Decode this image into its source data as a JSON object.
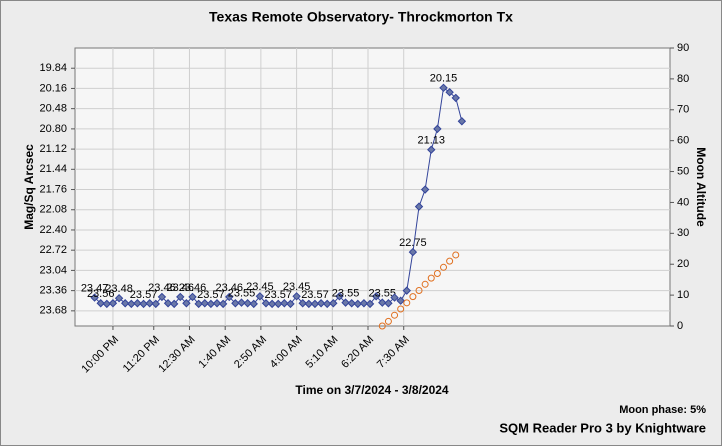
{
  "chart_data": {
    "type": "line",
    "title": "Texas Remote Observatory- Throckmorton Tx",
    "x_label": "Time on 3/7/2024 - 3/8/2024",
    "y_label": "Mag/Sq Arcsec",
    "y2_label": "Moon Altitude",
    "annotations": [
      "Moon phase: 5%",
      "SQM Reader Pro 3 by Knightware"
    ],
    "xlim": [
      20.76,
      40.2
    ],
    "xticks": [
      {
        "value": 22.0,
        "label": "10:00 PM"
      },
      {
        "value": 23.333,
        "label": "11:20 PM"
      },
      {
        "value": 24.5,
        "label": "12:30 AM"
      },
      {
        "value": 25.667,
        "label": "1:40 AM"
      },
      {
        "value": 26.833,
        "label": "2:50 AM"
      },
      {
        "value": 28.0,
        "label": "4:00 AM"
      },
      {
        "value": 29.167,
        "label": "5:10 AM"
      },
      {
        "value": 30.333,
        "label": "6:20 AM"
      },
      {
        "value": 31.5,
        "label": "7:30 AM"
      }
    ],
    "ylim": [
      19.52,
      23.92
    ],
    "y_inverted": true,
    "yticks": [
      19.84,
      20.16,
      20.48,
      {
        "value": 20.8,
        "label": "20.80"
      },
      21.12,
      21.44,
      21.76,
      22.08,
      {
        "value": 22.4,
        "label": "22.40"
      },
      22.72,
      23.04,
      23.36,
      23.68
    ],
    "y2lim": [
      0,
      90
    ],
    "y2ticks": [
      0,
      10,
      20,
      30,
      40,
      50,
      60,
      70,
      80,
      90
    ],
    "grid": true,
    "series": [
      {
        "name": "SQM",
        "color": "#33449a",
        "marker": "diamond",
        "x": [
          21.4,
          21.6,
          21.8,
          22.0,
          22.2,
          22.4,
          22.6,
          22.8,
          23.0,
          23.2,
          23.4,
          23.6,
          23.8,
          24.0,
          24.2,
          24.4,
          24.6,
          24.8,
          25.0,
          25.2,
          25.4,
          25.6,
          25.8,
          26.0,
          26.2,
          26.4,
          26.6,
          26.8,
          27.0,
          27.2,
          27.4,
          27.6,
          27.8,
          28.0,
          28.2,
          28.4,
          28.6,
          28.8,
          29.0,
          29.2,
          29.4,
          29.6,
          29.8,
          30.0,
          30.2,
          30.4,
          30.6,
          30.8,
          31.0,
          31.2,
          31.4,
          31.6,
          31.8,
          32.0,
          32.2,
          32.4,
          32.6,
          32.8,
          33.0,
          33.2,
          33.4
        ],
        "values": [
          23.47,
          23.56,
          23.57,
          23.56,
          23.48,
          23.56,
          23.57,
          23.56,
          23.57,
          23.56,
          23.57,
          23.46,
          23.56,
          23.57,
          23.46,
          23.56,
          23.46,
          23.57,
          23.56,
          23.57,
          23.56,
          23.57,
          23.46,
          23.56,
          23.55,
          23.56,
          23.57,
          23.45,
          23.56,
          23.57,
          23.57,
          23.56,
          23.57,
          23.45,
          23.56,
          23.57,
          23.57,
          23.56,
          23.57,
          23.56,
          23.45,
          23.55,
          23.56,
          23.57,
          23.56,
          23.57,
          23.45,
          23.55,
          23.56,
          23.47,
          23.52,
          23.36,
          22.75,
          22.03,
          21.76,
          21.13,
          20.8,
          20.15,
          20.22,
          20.31,
          20.68
        ],
        "value_labels": [
          "23.47",
          "23.56",
          null,
          null,
          "23.48",
          null,
          null,
          null,
          "23.57",
          null,
          null,
          "23.46",
          null,
          null,
          "23.46",
          null,
          "23.46",
          null,
          null,
          "23.57",
          null,
          null,
          "23.46",
          null,
          "23.55",
          null,
          null,
          "23.45",
          null,
          null,
          "23.57",
          null,
          null,
          "23.45",
          null,
          null,
          "23.57",
          null,
          null,
          null,
          null,
          "23.55",
          null,
          null,
          null,
          null,
          null,
          "23.55",
          null,
          null,
          null,
          null,
          "22.75",
          null,
          null,
          "21.13",
          null,
          "20.15",
          null,
          null,
          null
        ]
      },
      {
        "name": "Moon",
        "color": "#e07020",
        "marker": "circle",
        "axis": "y2",
        "x": [
          30.8,
          31.0,
          31.2,
          31.4,
          31.6,
          31.8,
          32.0,
          32.2,
          32.4,
          32.6,
          32.8,
          33.0,
          33.2
        ],
        "values": [
          0,
          1.5,
          3.5,
          5.5,
          7.5,
          9.5,
          11.5,
          13.5,
          15.5,
          17,
          19,
          21,
          23
        ]
      }
    ]
  }
}
